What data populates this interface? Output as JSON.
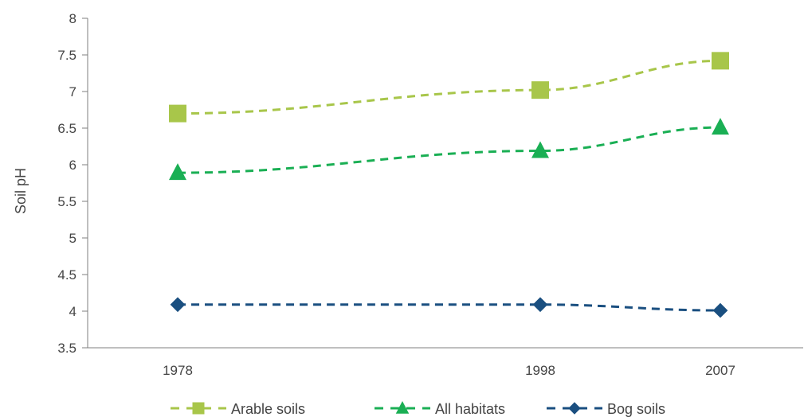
{
  "chart_data": {
    "type": "line",
    "title": "",
    "xlabel": "",
    "ylabel": "Soil pH",
    "x": [
      1978,
      1998,
      2007
    ],
    "xticklabels": [
      "1978",
      "1998",
      "2007"
    ],
    "xlim": [
      1978,
      2007
    ],
    "ylim": [
      3.5,
      8
    ],
    "yticks": [
      3.5,
      4,
      4.5,
      5,
      5.5,
      6,
      6.5,
      7,
      7.5,
      8
    ],
    "yticklabels": [
      "3.5",
      "4",
      "4.5",
      "5",
      "5.5",
      "6",
      "6.5",
      "7",
      "7.5",
      "8"
    ],
    "grid": false,
    "legend_position": "bottom",
    "series": [
      {
        "name": "Arable soils",
        "values": [
          6.7,
          7.02,
          7.42
        ],
        "color": "#A8C64A",
        "marker": "square",
        "linestyle": "dashed"
      },
      {
        "name": "All habitats",
        "values": [
          5.89,
          6.19,
          6.51
        ],
        "color": "#1AAF54",
        "marker": "triangle",
        "linestyle": "dashed"
      },
      {
        "name": "Bog soils",
        "values": [
          4.09,
          4.09,
          4.01
        ],
        "color": "#1A4F80",
        "marker": "diamond",
        "linestyle": "dashed"
      }
    ]
  }
}
